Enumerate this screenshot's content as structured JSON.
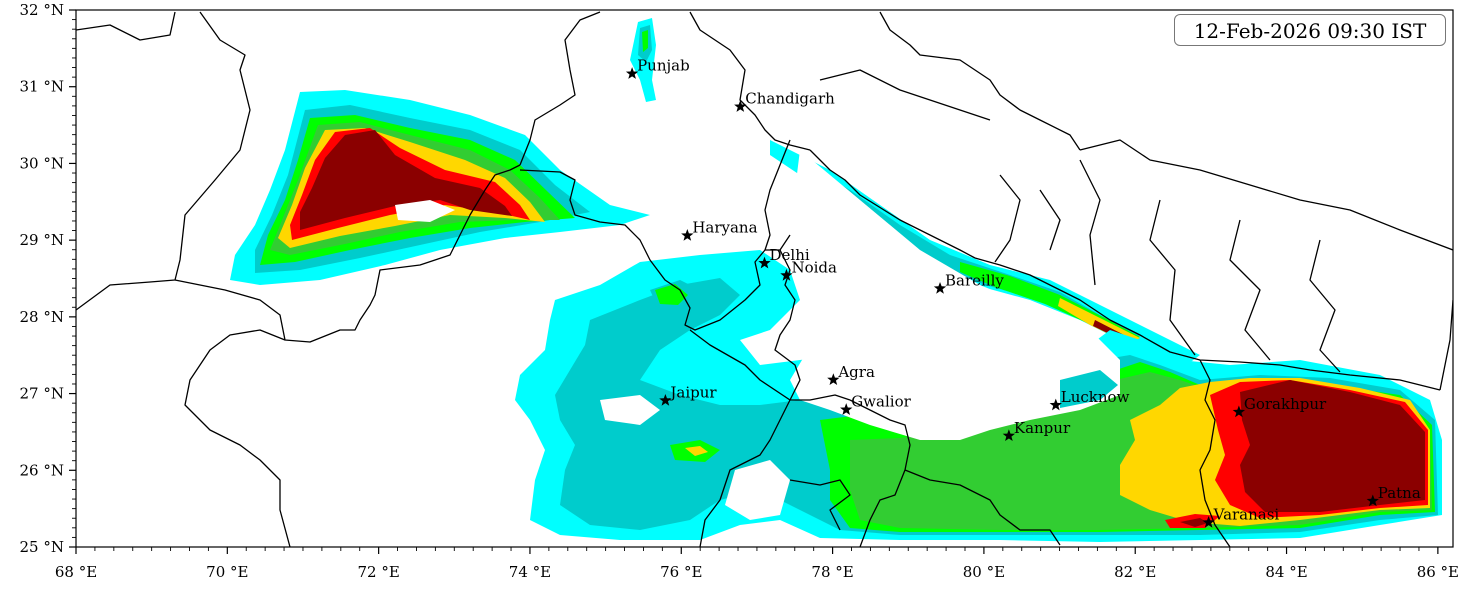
{
  "timestamp": "12-Feb-2026 09:30 IST",
  "axes": {
    "lon_range": [
      68,
      86.2
    ],
    "lat_range": [
      25,
      32
    ],
    "x_ticks": [
      {
        "value": 68,
        "label": "68 °E"
      },
      {
        "value": 70,
        "label": "70 °E"
      },
      {
        "value": 72,
        "label": "72 °E"
      },
      {
        "value": 74,
        "label": "74 °E"
      },
      {
        "value": 76,
        "label": "76 °E"
      },
      {
        "value": 78,
        "label": "78 °E"
      },
      {
        "value": 80,
        "label": "80 °E"
      },
      {
        "value": 82,
        "label": "82 °E"
      },
      {
        "value": 84,
        "label": "84 °E"
      },
      {
        "value": 86,
        "label": "86 °E"
      }
    ],
    "y_ticks": [
      {
        "value": 25,
        "label": "25 °N"
      },
      {
        "value": 26,
        "label": "26 °N"
      },
      {
        "value": 27,
        "label": "27 °N"
      },
      {
        "value": 28,
        "label": "28 °N"
      },
      {
        "value": 29,
        "label": "29 °N"
      },
      {
        "value": 30,
        "label": "30 °N"
      },
      {
        "value": 31,
        "label": "31 °N"
      },
      {
        "value": 32,
        "label": "32 °N"
      }
    ]
  },
  "cities": [
    {
      "name": "Punjab",
      "lon": 75.35,
      "lat": 31.17
    },
    {
      "name": "Chandigarh",
      "lon": 76.78,
      "lat": 30.74
    },
    {
      "name": "Haryana",
      "lon": 76.08,
      "lat": 29.06
    },
    {
      "name": "Delhi",
      "lon": 77.1,
      "lat": 28.7
    },
    {
      "name": "Noida",
      "lon": 77.39,
      "lat": 28.54
    },
    {
      "name": "Bareilly",
      "lon": 79.42,
      "lat": 28.37
    },
    {
      "name": "Agra",
      "lon": 78.01,
      "lat": 27.18
    },
    {
      "name": "Jaipur",
      "lon": 75.79,
      "lat": 26.91
    },
    {
      "name": "Gwalior",
      "lon": 78.18,
      "lat": 26.79
    },
    {
      "name": "Lucknow",
      "lon": 80.95,
      "lat": 26.85
    },
    {
      "name": "Kanpur",
      "lon": 80.33,
      "lat": 26.45
    },
    {
      "name": "Gorakhpur",
      "lon": 83.37,
      "lat": 26.76
    },
    {
      "name": "Varanasi",
      "lon": 82.97,
      "lat": 25.32
    },
    {
      "name": "Patna",
      "lon": 85.14,
      "lat": 25.6
    }
  ],
  "colors": {
    "level_1": "#00ffff",
    "level_2": "#00cccc",
    "level_3": "#00ff00",
    "level_4": "#32cd32",
    "level_5": "#ffd700",
    "level_6": "#ff0000",
    "level_7": "#8b0000",
    "border": "#000000"
  },
  "icons": {
    "city_marker": "star-icon"
  }
}
